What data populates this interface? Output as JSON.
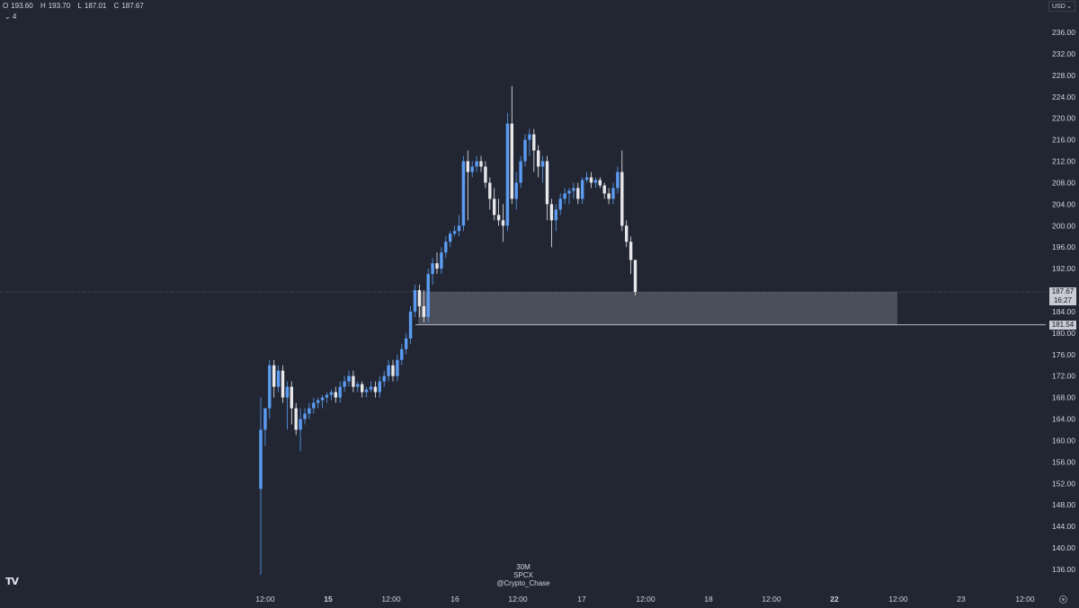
{
  "ohlc": {
    "open_label": "O",
    "open": "193.60",
    "high_label": "H",
    "high": "193.70",
    "low_label": "L",
    "low": "187.01",
    "close_label": "C",
    "close": "187.67"
  },
  "indicator_toggle": "⌄ 4",
  "currency": "USD",
  "watermark": {
    "timeframe": "30M",
    "symbol": "SPCX",
    "author": "@Crypto_Chase"
  },
  "price_tags": {
    "last_price": "187.67",
    "countdown": "16:27",
    "level": "181.54",
    "last_price_color": "#c9ccd4",
    "level_color": "#c9ccd4"
  },
  "colors": {
    "background": "#222633",
    "up_candle": "#5b9cf2",
    "down_candle": "#e8e8ea",
    "zone_fill": "#4b4f5b",
    "axis_text": "#d1d4dc"
  },
  "chart_data": {
    "type": "candlestick",
    "title": "",
    "symbol": "SPCX",
    "interval": "30M",
    "y_axis": {
      "side": "right",
      "range": [
        134,
        240
      ],
      "ticks": [
        "236.00",
        "232.00",
        "228.00",
        "224.00",
        "220.00",
        "216.00",
        "212.00",
        "208.00",
        "204.00",
        "200.00",
        "196.00",
        "192.00",
        "184.00",
        "180.00",
        "176.00",
        "172.00",
        "168.00",
        "164.00",
        "160.00",
        "156.00",
        "152.00",
        "148.00",
        "144.00",
        "140.00",
        "136.00"
      ]
    },
    "x_axis": {
      "ticks": [
        {
          "label": "12:00",
          "bold": false
        },
        {
          "label": "15",
          "bold": true
        },
        {
          "label": "12:00",
          "bold": false
        },
        {
          "label": "16",
          "bold": false
        },
        {
          "label": "12:00",
          "bold": false
        },
        {
          "label": "17",
          "bold": false
        },
        {
          "label": "12:00",
          "bold": false
        },
        {
          "label": "18",
          "bold": false
        },
        {
          "label": "12:00",
          "bold": false
        },
        {
          "label": "22",
          "bold": true
        },
        {
          "label": "12:00",
          "bold": false
        },
        {
          "label": "23",
          "bold": false
        },
        {
          "label": "12:00",
          "bold": false
        }
      ]
    },
    "last_price_line": 187.67,
    "level_line": 181.54,
    "zone": {
      "top": 187.67,
      "bottom": 181.54
    },
    "candles": [
      {
        "o": 151,
        "h": 168,
        "l": 135,
        "c": 162
      },
      {
        "o": 162,
        "h": 166,
        "l": 159,
        "c": 166
      },
      {
        "o": 166,
        "h": 175,
        "l": 164,
        "c": 174
      },
      {
        "o": 174,
        "h": 175,
        "l": 168,
        "c": 170
      },
      {
        "o": 170,
        "h": 174,
        "l": 169,
        "c": 173
      },
      {
        "o": 173,
        "h": 174,
        "l": 167,
        "c": 168
      },
      {
        "o": 168,
        "h": 171,
        "l": 162,
        "c": 170
      },
      {
        "o": 170,
        "h": 171,
        "l": 163,
        "c": 166
      },
      {
        "o": 166,
        "h": 167,
        "l": 161,
        "c": 162
      },
      {
        "o": 162,
        "h": 166,
        "l": 158,
        "c": 164
      },
      {
        "o": 164,
        "h": 166,
        "l": 163,
        "c": 165
      },
      {
        "o": 165,
        "h": 167,
        "l": 164,
        "c": 166
      },
      {
        "o": 166,
        "h": 168,
        "l": 165,
        "c": 167
      },
      {
        "o": 167,
        "h": 168,
        "l": 166,
        "c": 167.5
      },
      {
        "o": 167.5,
        "h": 168.5,
        "l": 166,
        "c": 168
      },
      {
        "o": 168,
        "h": 169,
        "l": 167,
        "c": 168.5
      },
      {
        "o": 168.5,
        "h": 169.5,
        "l": 167.5,
        "c": 169
      },
      {
        "o": 169,
        "h": 170,
        "l": 167,
        "c": 168
      },
      {
        "o": 168,
        "h": 171,
        "l": 167,
        "c": 170
      },
      {
        "o": 170,
        "h": 172,
        "l": 169,
        "c": 171
      },
      {
        "o": 171,
        "h": 173,
        "l": 170,
        "c": 172
      },
      {
        "o": 172,
        "h": 173,
        "l": 169,
        "c": 170
      },
      {
        "o": 170,
        "h": 171,
        "l": 169,
        "c": 170.5
      },
      {
        "o": 170.5,
        "h": 171,
        "l": 168,
        "c": 169
      },
      {
        "o": 169,
        "h": 170,
        "l": 168,
        "c": 169.5
      },
      {
        "o": 169.5,
        "h": 171,
        "l": 169,
        "c": 170
      },
      {
        "o": 170,
        "h": 171,
        "l": 168,
        "c": 169
      },
      {
        "o": 169,
        "h": 172,
        "l": 168,
        "c": 171
      },
      {
        "o": 171,
        "h": 173,
        "l": 170,
        "c": 172
      },
      {
        "o": 172,
        "h": 175,
        "l": 171,
        "c": 174
      },
      {
        "o": 174,
        "h": 175,
        "l": 171,
        "c": 172
      },
      {
        "o": 172,
        "h": 176,
        "l": 171,
        "c": 175
      },
      {
        "o": 175,
        "h": 178,
        "l": 174,
        "c": 177
      },
      {
        "o": 177,
        "h": 180,
        "l": 176,
        "c": 179
      },
      {
        "o": 179,
        "h": 185,
        "l": 178,
        "c": 184
      },
      {
        "o": 184,
        "h": 189,
        "l": 183,
        "c": 188
      },
      {
        "o": 188,
        "h": 189,
        "l": 183,
        "c": 185
      },
      {
        "o": 185,
        "h": 188,
        "l": 182,
        "c": 183
      },
      {
        "o": 183,
        "h": 192,
        "l": 182,
        "c": 191
      },
      {
        "o": 191,
        "h": 194,
        "l": 189,
        "c": 193
      },
      {
        "o": 193,
        "h": 195,
        "l": 191,
        "c": 192
      },
      {
        "o": 192,
        "h": 196,
        "l": 191,
        "c": 195
      },
      {
        "o": 195,
        "h": 198,
        "l": 194,
        "c": 197
      },
      {
        "o": 197,
        "h": 199,
        "l": 196,
        "c": 198.5
      },
      {
        "o": 198.5,
        "h": 200,
        "l": 198,
        "c": 199
      },
      {
        "o": 199,
        "h": 202,
        "l": 198,
        "c": 200
      },
      {
        "o": 200,
        "h": 213,
        "l": 199,
        "c": 212
      },
      {
        "o": 212,
        "h": 214,
        "l": 201,
        "c": 210
      },
      {
        "o": 210,
        "h": 212,
        "l": 209,
        "c": 211
      },
      {
        "o": 211,
        "h": 213,
        "l": 210,
        "c": 212
      },
      {
        "o": 212,
        "h": 213,
        "l": 210,
        "c": 211
      },
      {
        "o": 211,
        "h": 212,
        "l": 207,
        "c": 208
      },
      {
        "o": 208,
        "h": 209,
        "l": 203,
        "c": 205
      },
      {
        "o": 205,
        "h": 207,
        "l": 201,
        "c": 202
      },
      {
        "o": 202,
        "h": 205,
        "l": 200,
        "c": 201
      },
      {
        "o": 201,
        "h": 204,
        "l": 197,
        "c": 200
      },
      {
        "o": 200,
        "h": 221,
        "l": 199,
        "c": 219
      },
      {
        "o": 219,
        "h": 226,
        "l": 204,
        "c": 205
      },
      {
        "o": 205,
        "h": 210,
        "l": 203,
        "c": 208
      },
      {
        "o": 208,
        "h": 213,
        "l": 207,
        "c": 212
      },
      {
        "o": 212,
        "h": 217,
        "l": 211,
        "c": 216
      },
      {
        "o": 216,
        "h": 218,
        "l": 213,
        "c": 217
      },
      {
        "o": 217,
        "h": 218,
        "l": 210,
        "c": 214
      },
      {
        "o": 214,
        "h": 215,
        "l": 209,
        "c": 211
      },
      {
        "o": 211,
        "h": 213,
        "l": 208,
        "c": 212
      },
      {
        "o": 212,
        "h": 213,
        "l": 201,
        "c": 204
      },
      {
        "o": 204,
        "h": 205,
        "l": 196,
        "c": 201
      },
      {
        "o": 201,
        "h": 204,
        "l": 199,
        "c": 203
      },
      {
        "o": 203,
        "h": 206,
        "l": 202,
        "c": 205
      },
      {
        "o": 205,
        "h": 207,
        "l": 204,
        "c": 206
      },
      {
        "o": 206,
        "h": 207,
        "l": 204,
        "c": 206.5
      },
      {
        "o": 206.5,
        "h": 208,
        "l": 205,
        "c": 207
      },
      {
        "o": 207,
        "h": 208,
        "l": 204,
        "c": 205
      },
      {
        "o": 205,
        "h": 209,
        "l": 204,
        "c": 208.5
      },
      {
        "o": 208.5,
        "h": 210,
        "l": 208,
        "c": 209
      },
      {
        "o": 209,
        "h": 210,
        "l": 207,
        "c": 208
      },
      {
        "o": 208,
        "h": 209,
        "l": 207,
        "c": 208.5
      },
      {
        "o": 208.5,
        "h": 209,
        "l": 207,
        "c": 207.5
      },
      {
        "o": 207.5,
        "h": 208,
        "l": 205,
        "c": 206
      },
      {
        "o": 206,
        "h": 207,
        "l": 204,
        "c": 205
      },
      {
        "o": 205,
        "h": 208,
        "l": 204,
        "c": 207
      },
      {
        "o": 207,
        "h": 211,
        "l": 206,
        "c": 210
      },
      {
        "o": 210,
        "h": 214,
        "l": 199,
        "c": 200
      },
      {
        "o": 200,
        "h": 201,
        "l": 196,
        "c": 197
      },
      {
        "o": 197,
        "h": 198,
        "l": 191,
        "c": 193.6
      },
      {
        "o": 193.6,
        "h": 193.7,
        "l": 187.01,
        "c": 187.67
      }
    ]
  }
}
